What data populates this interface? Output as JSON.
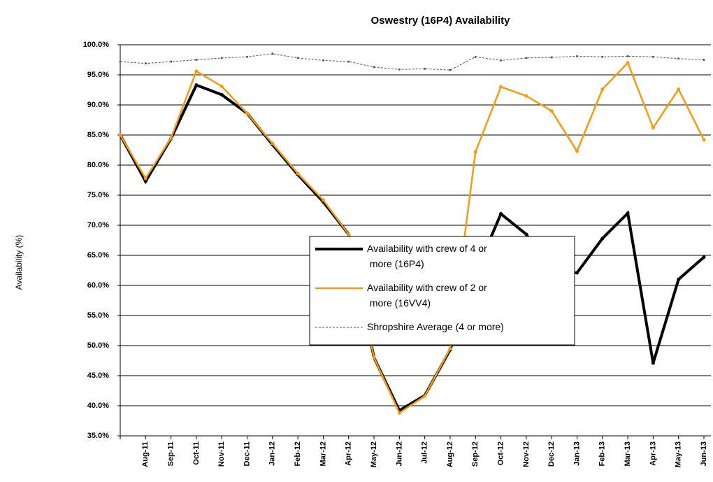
{
  "chart_data": {
    "type": "line",
    "title": "Oswestry (16P4) Availability",
    "y_label": "Availability (%)",
    "categories": [
      null,
      "Aug-11",
      "Sep-11",
      "Oct-11",
      "Nov-11",
      "Dec-11",
      "Jan-12",
      "Feb-12",
      "Mar-12",
      "Apr-12",
      "May-12",
      "Jun-12",
      "Jul-12",
      "Aug-12",
      "Sep-12",
      "Oct-12",
      "Nov-12",
      "Dec-12",
      "Jan-13",
      "Feb-13",
      "Mar-13",
      "Apr-13",
      "May-13",
      "Jun-13"
    ],
    "series": [
      {
        "name": "Availability with crew of 4 or more (16P4)",
        "color": "#000000",
        "width": 4,
        "values": [
          85,
          77.3,
          84.4,
          93.3,
          91.7,
          88.6,
          83.4,
          78.4,
          73.9,
          68.5,
          48,
          39.2,
          41.7,
          49.3,
          62,
          71.9,
          68.5,
          62,
          62.1,
          67.8,
          72,
          47.1,
          61,
          64.7
        ]
      },
      {
        "name": "Availability with crew of 2 or more (16VV4)",
        "color": "#f39c12",
        "width": 2.5,
        "values": [
          85,
          77.8,
          84.5,
          95.6,
          93.1,
          88.6,
          83.6,
          78.6,
          74.2,
          68.5,
          48,
          38.8,
          41.6,
          49.5,
          82.2,
          93,
          91.5,
          89,
          82.3,
          92.6,
          97,
          86.2,
          92.6,
          84.2
        ]
      },
      {
        "name": "Shropshire Average (4 or more)",
        "color": "#555555",
        "width": 1,
        "dashed": true,
        "values": [
          97.2,
          96.9,
          97.2,
          97.5,
          97.8,
          98,
          98.5,
          97.8,
          97.4,
          97.2,
          96.3,
          95.9,
          96,
          95.8,
          98,
          97.4,
          97.8,
          97.9,
          98.1,
          98,
          98.1,
          98,
          97.7,
          97.5
        ]
      }
    ],
    "ylim": [
      35,
      100
    ],
    "yticks": [
      {
        "value": 35,
        "label": "35.0%"
      },
      {
        "value": 40,
        "label": "40.0%"
      },
      {
        "value": 45,
        "label": "45.0%"
      },
      {
        "value": 50,
        "label": "50.0%"
      },
      {
        "value": 55,
        "label": "55.0%"
      },
      {
        "value": 60,
        "label": "60.0%"
      },
      {
        "value": 65,
        "label": "65.0%"
      },
      {
        "value": 70,
        "label": "70.0%"
      },
      {
        "value": 75,
        "label": "75.0%"
      },
      {
        "value": 80,
        "label": "80.0%"
      },
      {
        "value": 85,
        "label": "85.0%"
      },
      {
        "value": 90,
        "label": "90.0%"
      },
      {
        "value": 95,
        "label": "95.0%"
      },
      {
        "value": 100,
        "label": "100.0%"
      }
    ],
    "grid": true,
    "legend": "center"
  }
}
